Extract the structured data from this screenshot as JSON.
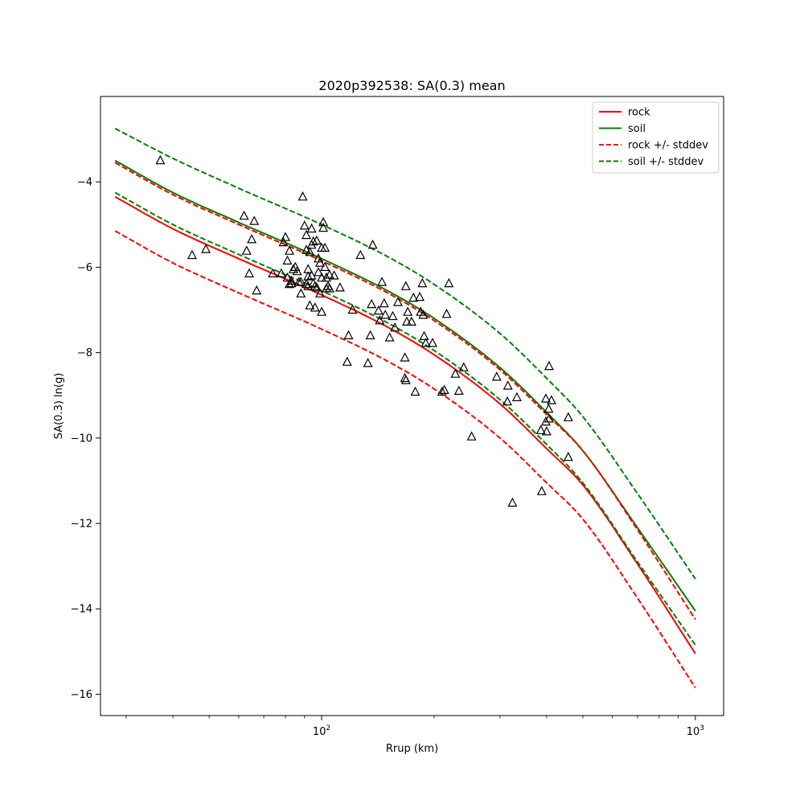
{
  "chart_data": {
    "type": "scatter",
    "title": "2020p392538: SA(0.3) mean",
    "xlabel": "Rrup (km)",
    "ylabel": "SA(0.3) ln(g)",
    "xscale": "log",
    "xlim": [
      25.6,
      1190
    ],
    "ylim": [
      -16.5,
      -2.0
    ],
    "x_ticks": [
      {
        "value": 100,
        "base": "10",
        "exp": "2"
      },
      {
        "value": 1000,
        "base": "10",
        "exp": "3"
      }
    ],
    "y_ticks": [
      {
        "value": -4,
        "label": "−4"
      },
      {
        "value": -6,
        "label": "−6"
      },
      {
        "value": -8,
        "label": "−8"
      },
      {
        "value": -10,
        "label": "−10"
      },
      {
        "value": -12,
        "label": "−12"
      },
      {
        "value": -14,
        "label": "−14"
      },
      {
        "value": -16,
        "label": "−16"
      }
    ],
    "grid": false,
    "legend_position": "top-right",
    "colors": {
      "rock": "#ff0000",
      "soil": "#008000",
      "markers": "#000000"
    },
    "lines": [
      {
        "name": "rock",
        "key": "rock_mean",
        "color": "#ff0000",
        "dash": false,
        "x": [
          28,
          40,
          60,
          100,
          150,
          200,
          300,
          400,
          500,
          700,
          1000
        ],
        "y": [
          -4.35,
          -5.1,
          -5.8,
          -6.65,
          -7.4,
          -8.05,
          -9.2,
          -10.25,
          -11.1,
          -12.95,
          -15.05
        ]
      },
      {
        "name": "soil",
        "key": "soil_mean",
        "color": "#008000",
        "dash": false,
        "x": [
          28,
          40,
          60,
          100,
          150,
          200,
          300,
          400,
          500,
          700,
          1000
        ],
        "y": [
          -3.5,
          -4.25,
          -4.95,
          -5.8,
          -6.55,
          -7.2,
          -8.35,
          -9.4,
          -10.3,
          -12.1,
          -14.05
        ]
      },
      {
        "name": "rock +/- stddev",
        "key": "rock_plus",
        "color": "#ff0000",
        "dash": true,
        "x": [
          28,
          40,
          60,
          100,
          150,
          200,
          300,
          400,
          500,
          700,
          1000
        ],
        "y": [
          -3.55,
          -4.3,
          -5.0,
          -5.85,
          -6.6,
          -7.25,
          -8.4,
          -9.45,
          -10.3,
          -12.15,
          -14.25
        ]
      },
      {
        "name": "rock - stddev",
        "key": "rock_minus",
        "color": "#ff0000",
        "dash": true,
        "x": [
          28,
          40,
          60,
          100,
          150,
          200,
          300,
          400,
          500,
          700,
          1000
        ],
        "y": [
          -5.15,
          -5.9,
          -6.6,
          -7.45,
          -8.2,
          -8.85,
          -10.0,
          -11.05,
          -11.9,
          -13.75,
          -15.85
        ]
      },
      {
        "name": "soil +/- stddev",
        "key": "soil_plus",
        "color": "#008000",
        "dash": true,
        "x": [
          28,
          40,
          60,
          100,
          150,
          200,
          300,
          400,
          500,
          700,
          1000
        ],
        "y": [
          -2.75,
          -3.45,
          -4.15,
          -5.0,
          -5.75,
          -6.4,
          -7.55,
          -8.6,
          -9.5,
          -11.3,
          -13.3
        ]
      },
      {
        "name": "soil - stddev",
        "key": "soil_minus",
        "color": "#008000",
        "dash": true,
        "x": [
          28,
          40,
          60,
          100,
          150,
          200,
          300,
          400,
          500,
          700,
          1000
        ],
        "y": [
          -4.25,
          -5.0,
          -5.7,
          -6.55,
          -7.3,
          -7.95,
          -9.1,
          -10.15,
          -11.05,
          -12.9,
          -14.85
        ]
      }
    ],
    "legend": [
      {
        "label": "rock",
        "color": "#ff0000",
        "dash": false
      },
      {
        "label": "soil",
        "color": "#008000",
        "dash": false
      },
      {
        "label": "rock +/- stddev",
        "color": "#ff0000",
        "dash": true
      },
      {
        "label": "soil +/- stddev",
        "color": "#008000",
        "dash": true
      }
    ],
    "scatter": {
      "marker": "triangle",
      "x": [
        37,
        45,
        49,
        62,
        63,
        64,
        65,
        66,
        67,
        74,
        78,
        79,
        80,
        81,
        81,
        82,
        82,
        83,
        83,
        84,
        85,
        86,
        87,
        88,
        88,
        89,
        90,
        91,
        91,
        91,
        92,
        92,
        92,
        93,
        93,
        94,
        94,
        94,
        95,
        95,
        96,
        96,
        97,
        97,
        98,
        98,
        99,
        99,
        100,
        100,
        100,
        101,
        101,
        102,
        102,
        103,
        103,
        104,
        105,
        105,
        108,
        112,
        117,
        118,
        121,
        127,
        133,
        135,
        136,
        137,
        142,
        143,
        145,
        147,
        148,
        152,
        155,
        157,
        160,
        167,
        167,
        168,
        168,
        169,
        170,
        174,
        176,
        178,
        183,
        184,
        186,
        187,
        188,
        190,
        198,
        210,
        213,
        216,
        219,
        228,
        233,
        240,
        252,
        294,
        314,
        315,
        324,
        333,
        386,
        388,
        398,
        398,
        400,
        405,
        406,
        406,
        412,
        457,
        457
      ],
      "y": [
        -3.5,
        -5.72,
        -5.58,
        -4.8,
        -5.62,
        -6.15,
        -5.35,
        -4.92,
        -6.55,
        -6.15,
        -6.15,
        -5.42,
        -5.3,
        -5.85,
        -6.25,
        -5.62,
        -6.4,
        -6.32,
        -6.38,
        -6.05,
        -6.0,
        -6.1,
        -6.35,
        -6.62,
        -6.35,
        -4.35,
        -5.03,
        -5.25,
        -5.6,
        -6.4,
        -6.05,
        -6.22,
        -6.45,
        -5.65,
        -6.9,
        -6.2,
        -5.1,
        -5.48,
        -6.38,
        -5.4,
        -6.45,
        -6.95,
        -5.38,
        -6.48,
        -5.8,
        -6.12,
        -5.9,
        -6.62,
        -7.05,
        -6.25,
        -5.55,
        -4.95,
        -5.08,
        -6.0,
        -5.55,
        -6.5,
        -6.25,
        -6.45,
        -6.5,
        -6.18,
        -6.2,
        -6.48,
        -8.22,
        -7.6,
        -7.0,
        -5.72,
        -8.25,
        -7.6,
        -6.87,
        -5.48,
        -7.02,
        -7.25,
        -6.35,
        -6.85,
        -7.12,
        -7.65,
        -7.15,
        -7.42,
        -6.82,
        -8.6,
        -8.12,
        -8.65,
        -6.45,
        -7.28,
        -7.05,
        -7.28,
        -6.72,
        -8.92,
        -6.7,
        -7.05,
        -6.38,
        -7.12,
        -7.62,
        -7.78,
        -7.78,
        -8.92,
        -8.88,
        -7.1,
        -6.38,
        -8.5,
        -8.9,
        -8.35,
        -9.97,
        -8.57,
        -9.15,
        -8.78,
        -11.52,
        -9.05,
        -9.82,
        -11.25,
        -9.62,
        -9.08,
        -9.85,
        -9.32,
        -8.32,
        -9.55,
        -9.12,
        -10.45,
        -9.52
      ]
    }
  }
}
